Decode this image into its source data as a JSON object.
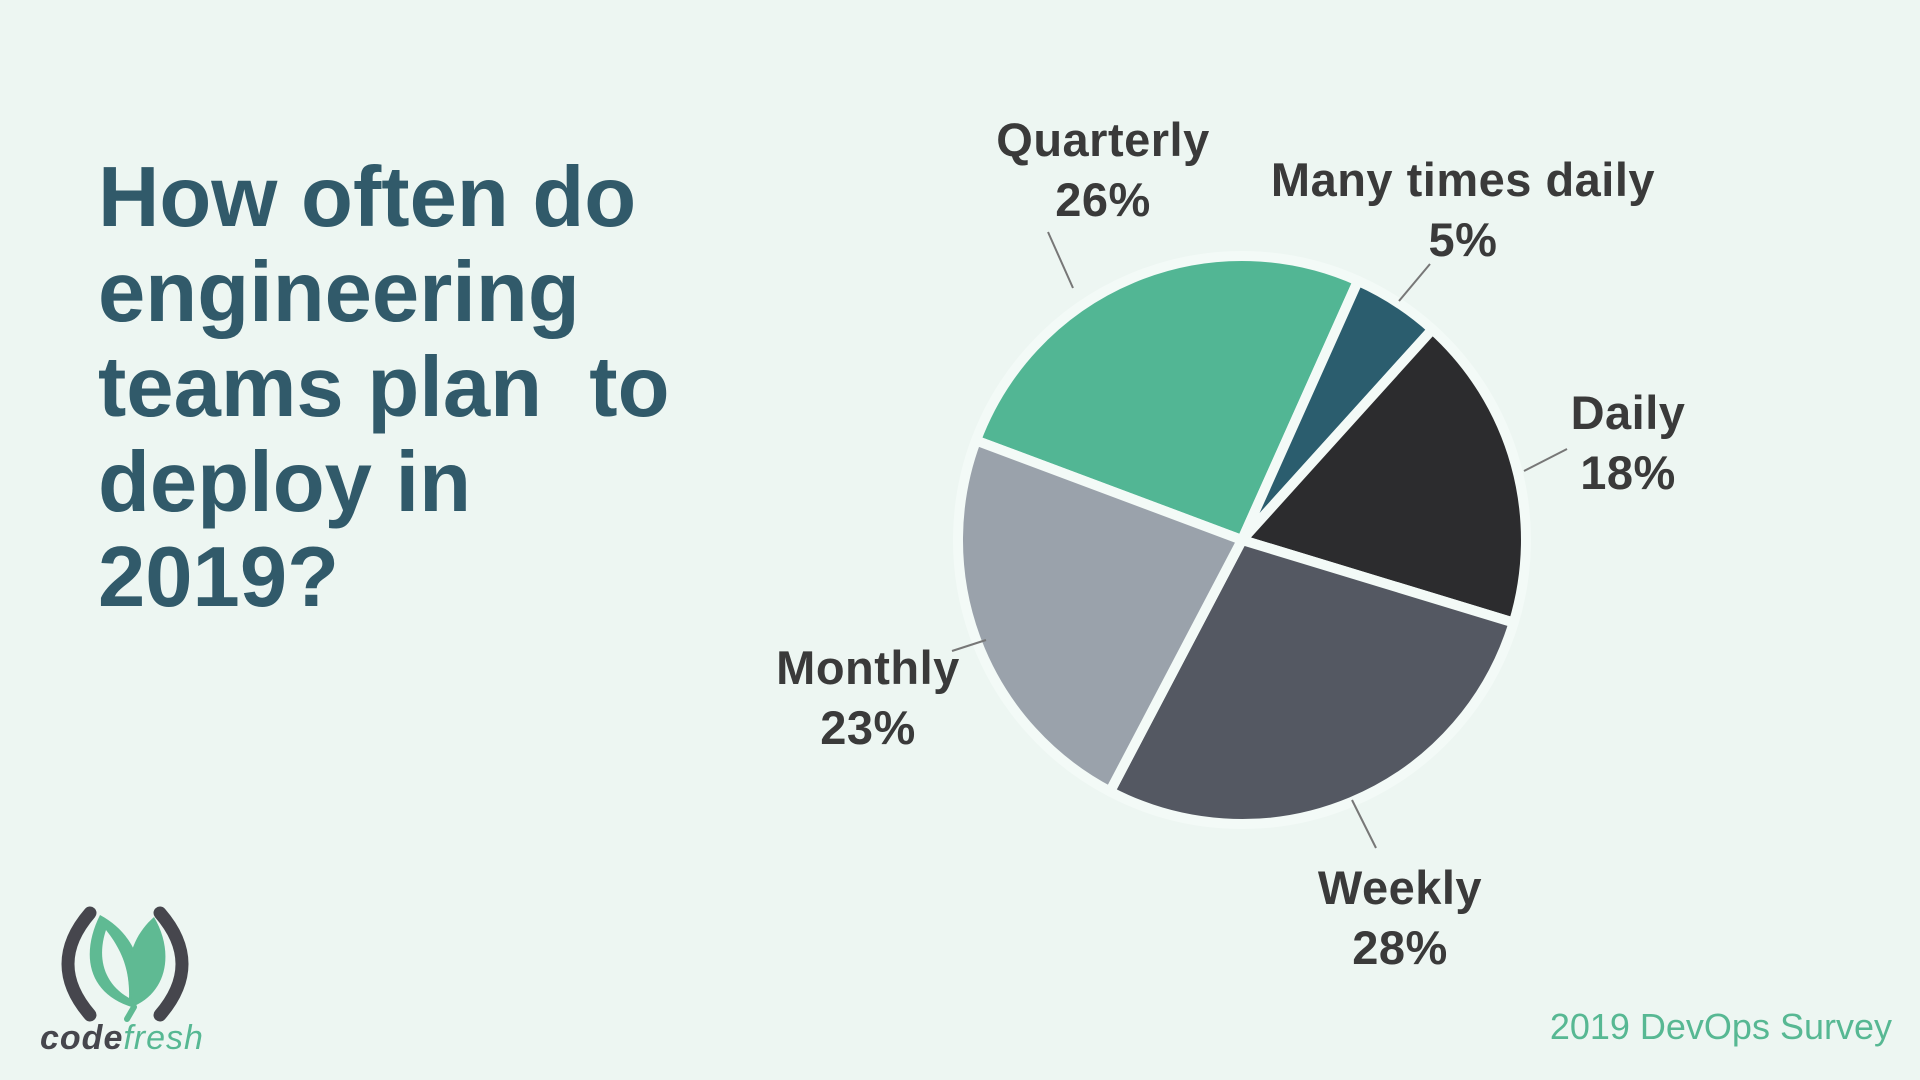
{
  "page": {
    "background_color": "#edf6f2",
    "gap_color": "#f3faf7",
    "label_color": "#3a3a3a",
    "leader_line_color": "#777777",
    "title_color": "#315a6a"
  },
  "title": {
    "lines": [
      "How often do",
      "engineering",
      "teams plan  to",
      "deploy in",
      "2019?"
    ]
  },
  "chart_data": {
    "type": "pie",
    "title": "How often do engineering teams plan to deploy in 2019?",
    "unit": "%",
    "start_angle_deg": 290.5,
    "direction": "clockwise",
    "labels_outside": true,
    "legend": "none",
    "slices": [
      {
        "label": "Quarterly",
        "value": 26,
        "value_label": "26%",
        "color": "#52b694"
      },
      {
        "label": "Many times daily",
        "value": 5,
        "value_label": "5%",
        "color": "#2b5d6e"
      },
      {
        "label": "Daily",
        "value": 18,
        "value_label": "18%",
        "color": "#2c2c2e"
      },
      {
        "label": "Weekly",
        "value": 28,
        "value_label": "28%",
        "color": "#545862"
      },
      {
        "label": "Monthly",
        "value": 23,
        "value_label": "23%",
        "color": "#9aa2ab"
      }
    ]
  },
  "footer": {
    "brand": {
      "code": "code",
      "fresh": "fresh"
    },
    "source": "2019 DevOps Survey"
  }
}
